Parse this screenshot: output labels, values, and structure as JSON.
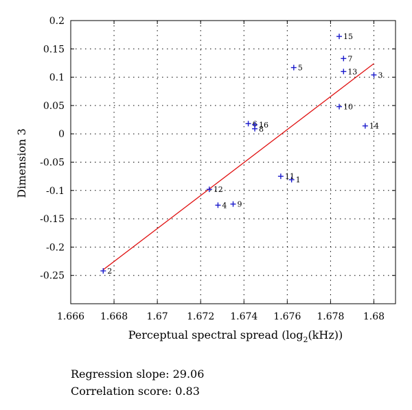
{
  "chart_data": {
    "type": "scatter",
    "title": "",
    "xlabel_main": "Perceptual spectral spread (log",
    "xlabel_sub": "2",
    "xlabel_tail": "(kHz))",
    "ylabel": "Dimension 3",
    "xlim": [
      1.666,
      1.681
    ],
    "ylim": [
      -0.3,
      0.2
    ],
    "x_ticks": [
      "1.666",
      "1.668",
      "1.67",
      "1.672",
      "1.674",
      "1.676",
      "1.678",
      "1.68"
    ],
    "y_ticks": [
      "0.2",
      "0.15",
      "0.1",
      "0.05",
      "0",
      "-0.05",
      "-0.1",
      "-0.15",
      "-0.2",
      "-0.25"
    ],
    "grid": true,
    "points": [
      {
        "label": "1",
        "x": 1.6762,
        "y": -0.081
      },
      {
        "label": "2",
        "x": 1.6675,
        "y": -0.242
      },
      {
        "label": "3",
        "x": 1.68,
        "y": 0.104
      },
      {
        "label": "4",
        "x": 1.6728,
        "y": -0.126
      },
      {
        "label": "5",
        "x": 1.6763,
        "y": 0.117
      },
      {
        "label": "6",
        "x": 1.6742,
        "y": 0.018
      },
      {
        "label": "7",
        "x": 1.6786,
        "y": 0.133
      },
      {
        "label": "8",
        "x": 1.6745,
        "y": 0.009
      },
      {
        "label": "9",
        "x": 1.6735,
        "y": -0.124
      },
      {
        "label": "10",
        "x": 1.6784,
        "y": 0.048
      },
      {
        "label": "11",
        "x": 1.6757,
        "y": -0.075
      },
      {
        "label": "12",
        "x": 1.6724,
        "y": -0.098
      },
      {
        "label": "13",
        "x": 1.6786,
        "y": 0.11
      },
      {
        "label": "14",
        "x": 1.6796,
        "y": 0.014
      },
      {
        "label": "15",
        "x": 1.6784,
        "y": 0.172
      },
      {
        "label": "16",
        "x": 1.6745,
        "y": 0.016
      }
    ],
    "regression_line": {
      "x": [
        1.6675,
        1.68
      ],
      "y": [
        -0.24,
        0.124
      ]
    },
    "marker_color": "#1a1acc",
    "line_color": "#e01010"
  },
  "caption": {
    "slope": "Regression slope: 29.06",
    "correlation": "Correlation score: 0.83"
  }
}
